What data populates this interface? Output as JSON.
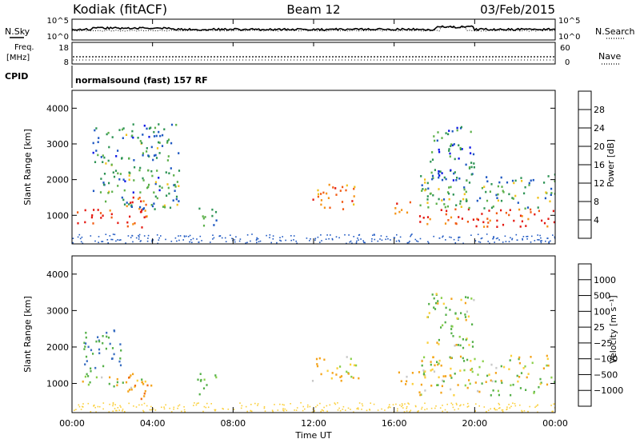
{
  "header": {
    "station": "Kodiak (fitACF)",
    "beam": "Beam 12",
    "date": "03/Feb/2015"
  },
  "noise_panel": {
    "left_label": "N.Sky",
    "right_label": "N.Search",
    "left_ticks": [
      "10^5",
      "10^0"
    ],
    "right_ticks": [
      "10^5",
      "10^0"
    ]
  },
  "freq_panel": {
    "left_label_line1": "Freq.",
    "left_label_line2": "[MHz]",
    "right_label": "Nave",
    "left_ticks": [
      "18",
      "8"
    ],
    "right_ticks": [
      "60",
      "0"
    ]
  },
  "cpid_panel": {
    "label": "CPID",
    "text": "normalsound (fast) 157 RF"
  },
  "x_axis": {
    "title": "Time UT",
    "ticks": [
      "00:00",
      "04:00",
      "08:00",
      "12:00",
      "16:00",
      "20:00",
      "00:00"
    ],
    "range_hours": [
      0,
      24
    ]
  },
  "colors": {
    "power_scale": [
      "#0a14e6",
      "#1d57c2",
      "#2f9455",
      "#5cb04a",
      "#f0c21c",
      "#f59418",
      "#f25c14",
      "#e41a12"
    ],
    "velocity_scale": [
      "#ee1010",
      "#f07018",
      "#f4a41c",
      "#fbcf3a",
      "#c8c8c8",
      "#c8c8c8",
      "#8ad04a",
      "#55b049",
      "#3a6fc2",
      "#1d3cc8"
    ]
  },
  "chart_data": [
    {
      "type": "heatmap",
      "title": "Power",
      "ylabel": "Slant Range [km]",
      "xlabel": "",
      "ylim": [
        200,
        4500
      ],
      "yticks": [
        "1000",
        "2000",
        "3000",
        "4000"
      ],
      "colorbar": {
        "label": "Power [dB]",
        "ticks": [
          "4",
          "8",
          "12",
          "16",
          "20",
          "24",
          "28"
        ],
        "range": [
          0,
          32
        ]
      },
      "regions": [
        {
          "t": [
            0.2,
            2.8
          ],
          "range_km": [
            800,
            1200
          ],
          "power_db": 28
        },
        {
          "t": [
            2.5,
            3.8
          ],
          "range_km": [
            600,
            1600
          ],
          "power_db": 26
        },
        {
          "t": [
            1.0,
            5.3
          ],
          "range_km": [
            1200,
            3600
          ],
          "power_db": 10
        },
        {
          "t": [
            6.2,
            7.2
          ],
          "range_km": [
            700,
            1300
          ],
          "power_db": 12
        },
        {
          "t": [
            11.9,
            14.2
          ],
          "range_km": [
            1200,
            1900
          ],
          "power_db": 24
        },
        {
          "t": [
            16.0,
            17.0
          ],
          "range_km": [
            1000,
            1400
          ],
          "power_db": 22
        },
        {
          "t": [
            17.2,
            24.0
          ],
          "range_km": [
            700,
            1200
          ],
          "power_db": 28
        },
        {
          "t": [
            17.2,
            24.0
          ],
          "range_km": [
            1200,
            2200
          ],
          "power_db": 12
        },
        {
          "t": [
            17.6,
            20.0
          ],
          "range_km": [
            2000,
            3500
          ],
          "power_db": 8
        }
      ]
    },
    {
      "type": "heatmap",
      "title": "Velocity",
      "ylabel": "Slant Range [km]",
      "xlabel": "Time UT",
      "ylim": [
        200,
        4500
      ],
      "yticks": [
        "1000",
        "2000",
        "3000",
        "4000"
      ],
      "colorbar": {
        "label": "Velocity [m s⁻¹]",
        "ticks": [
          "1000",
          "500",
          "100",
          "25",
          "−25",
          "−100",
          "−500",
          "−1000"
        ]
      },
      "regions": [
        {
          "t": [
            0.2,
            3.8
          ],
          "range_km": [
            900,
            1300
          ],
          "velocity": 0
        },
        {
          "t": [
            2.6,
            4.0
          ],
          "range_km": [
            600,
            1200
          ],
          "velocity": -500
        },
        {
          "t": [
            0.5,
            2.5
          ],
          "range_km": [
            1300,
            2500
          ],
          "velocity": 500
        },
        {
          "t": [
            6.2,
            7.2
          ],
          "range_km": [
            700,
            1300
          ],
          "velocity": 300
        },
        {
          "t": [
            11.9,
            14.2
          ],
          "range_km": [
            1100,
            1800
          ],
          "velocity": -150
        },
        {
          "t": [
            16.0,
            17.0
          ],
          "range_km": [
            1000,
            1400
          ],
          "velocity": -150
        },
        {
          "t": [
            17.2,
            24.0
          ],
          "range_km": [
            700,
            1800
          ],
          "velocity": 0
        },
        {
          "t": [
            17.6,
            20.0
          ],
          "range_km": [
            2000,
            3500
          ],
          "velocity": 100
        }
      ]
    }
  ]
}
